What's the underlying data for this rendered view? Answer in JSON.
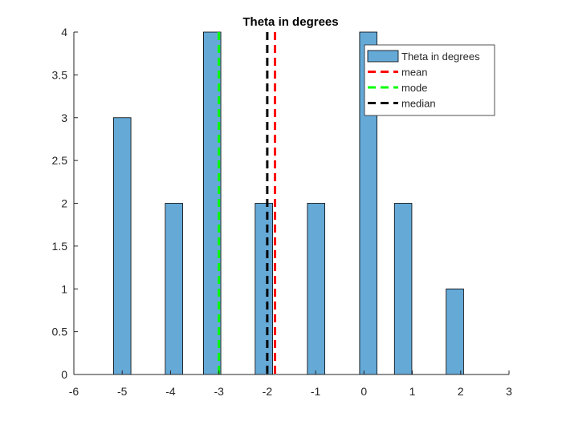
{
  "chart_data": {
    "type": "bar",
    "title": "Theta in degrees",
    "xlabel": "",
    "ylabel": "",
    "xlim": [
      -6,
      3
    ],
    "ylim": [
      0,
      4
    ],
    "xticks": [
      "-6",
      "-5",
      "-4",
      "-3",
      "-2",
      "-1",
      "0",
      "1",
      "2",
      "3"
    ],
    "yticks": [
      "0",
      "0.5",
      "1",
      "1.5",
      "2",
      "2.5",
      "3",
      "3.5",
      "4"
    ],
    "bin_width": 0.36,
    "bars": [
      {
        "x": -5.0,
        "value": 3
      },
      {
        "x": -3.93,
        "value": 2
      },
      {
        "x": -3.14,
        "value": 4
      },
      {
        "x": -2.07,
        "value": 2
      },
      {
        "x": -0.99,
        "value": 2
      },
      {
        "x": 0.09,
        "value": 4
      },
      {
        "x": 0.81,
        "value": 2
      },
      {
        "x": 1.88,
        "value": 1
      }
    ],
    "series": [
      {
        "name": "Theta in degrees",
        "kind": "bar",
        "color": "#65a9d7"
      },
      {
        "name": "mean",
        "kind": "vline",
        "x": -1.84,
        "color": "#ff0000"
      },
      {
        "name": "mode",
        "kind": "vline",
        "x": -3.0,
        "color": "#00ff00"
      },
      {
        "name": "median",
        "kind": "vline",
        "x": -2.0,
        "color": "#000000"
      }
    ],
    "legend_position": "top-right",
    "grid": false
  }
}
